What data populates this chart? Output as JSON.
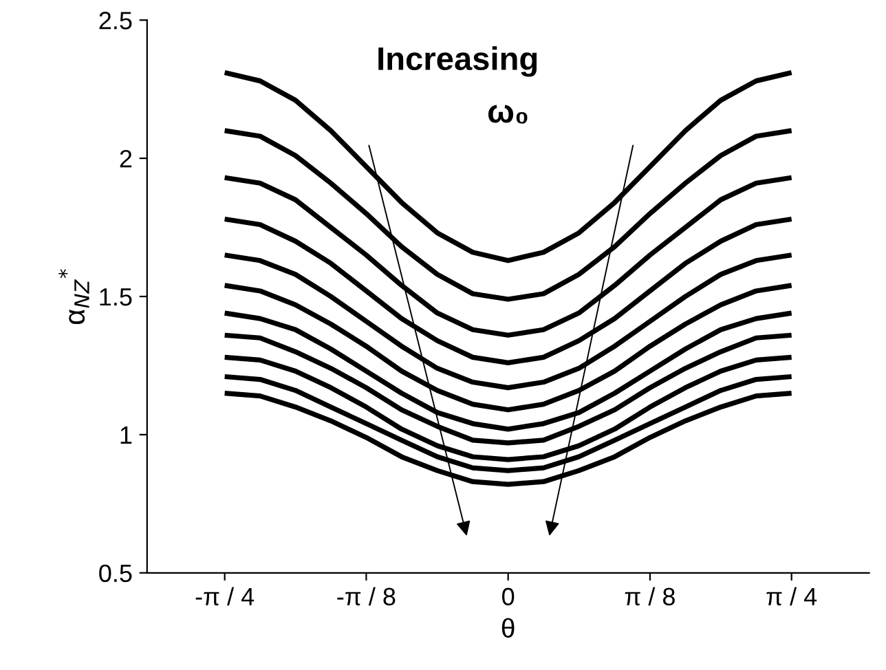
{
  "chart_data": {
    "type": "line",
    "xlabel": "θ",
    "ylabel": "α$_{NZ}$$^{*}$",
    "x": [
      -0.785,
      -0.687,
      -0.589,
      -0.491,
      -0.393,
      -0.295,
      -0.196,
      -0.098,
      0,
      0.098,
      0.196,
      0.295,
      0.393,
      0.491,
      0.589,
      0.687,
      0.785
    ],
    "series": [
      {
        "color": "#000000",
        "values": [
          2.31,
          2.28,
          2.21,
          2.1,
          1.97,
          1.84,
          1.73,
          1.66,
          1.63,
          1.66,
          1.73,
          1.84,
          1.97,
          2.1,
          2.21,
          2.28,
          2.31
        ]
      },
      {
        "color": "#000000",
        "values": [
          2.1,
          2.08,
          2.01,
          1.91,
          1.8,
          1.68,
          1.58,
          1.51,
          1.49,
          1.51,
          1.58,
          1.68,
          1.8,
          1.91,
          2.01,
          2.08,
          2.1
        ]
      },
      {
        "color": "#000000",
        "values": [
          1.93,
          1.91,
          1.85,
          1.75,
          1.65,
          1.54,
          1.44,
          1.38,
          1.36,
          1.38,
          1.44,
          1.54,
          1.65,
          1.75,
          1.85,
          1.91,
          1.93
        ]
      },
      {
        "color": "#000000",
        "values": [
          1.78,
          1.76,
          1.7,
          1.62,
          1.52,
          1.42,
          1.34,
          1.28,
          1.26,
          1.28,
          1.34,
          1.42,
          1.52,
          1.62,
          1.7,
          1.76,
          1.78
        ]
      },
      {
        "color": "#000000",
        "values": [
          1.65,
          1.63,
          1.58,
          1.5,
          1.41,
          1.32,
          1.24,
          1.19,
          1.17,
          1.19,
          1.24,
          1.32,
          1.41,
          1.5,
          1.58,
          1.63,
          1.65
        ]
      },
      {
        "color": "#000000",
        "values": [
          1.54,
          1.52,
          1.47,
          1.4,
          1.32,
          1.23,
          1.16,
          1.11,
          1.09,
          1.11,
          1.16,
          1.23,
          1.32,
          1.4,
          1.47,
          1.52,
          1.54
        ]
      },
      {
        "color": "#000000",
        "values": [
          1.44,
          1.42,
          1.38,
          1.31,
          1.23,
          1.15,
          1.08,
          1.04,
          1.02,
          1.04,
          1.08,
          1.15,
          1.23,
          1.31,
          1.38,
          1.42,
          1.44
        ]
      },
      {
        "color": "#000000",
        "values": [
          1.36,
          1.35,
          1.3,
          1.24,
          1.17,
          1.09,
          1.03,
          0.98,
          0.97,
          0.98,
          1.03,
          1.09,
          1.17,
          1.24,
          1.3,
          1.35,
          1.36
        ]
      },
      {
        "color": "#000000",
        "values": [
          1.28,
          1.27,
          1.23,
          1.17,
          1.1,
          1.02,
          0.96,
          0.92,
          0.91,
          0.92,
          0.96,
          1.02,
          1.1,
          1.17,
          1.23,
          1.27,
          1.28
        ]
      },
      {
        "color": "#000000",
        "values": [
          1.21,
          1.2,
          1.16,
          1.1,
          1.04,
          0.98,
          0.92,
          0.88,
          0.87,
          0.88,
          0.92,
          0.98,
          1.04,
          1.1,
          1.16,
          1.2,
          1.21
        ]
      },
      {
        "color": "#000000",
        "values": [
          1.15,
          1.14,
          1.1,
          1.05,
          0.99,
          0.92,
          0.87,
          0.83,
          0.82,
          0.83,
          0.87,
          0.92,
          0.99,
          1.05,
          1.1,
          1.14,
          1.15
        ]
      }
    ],
    "xlim": [
      -1.0,
      1.0
    ],
    "ylim": [
      0.5,
      2.5
    ],
    "xticks": [
      {
        "value": -0.785,
        "label": "-π / 4"
      },
      {
        "value": -0.393,
        "label": "-π / 8"
      },
      0,
      {
        "value": 0.393,
        "label": "π / 8"
      },
      {
        "value": 0.785,
        "label": "π / 4"
      }
    ],
    "yticks": [
      0.5,
      1,
      1.5,
      2,
      2.5
    ],
    "annotations": [
      "Increasing",
      "ω₀"
    ],
    "grid": false,
    "legend": false,
    "marker": "none",
    "line_style": "solid"
  }
}
